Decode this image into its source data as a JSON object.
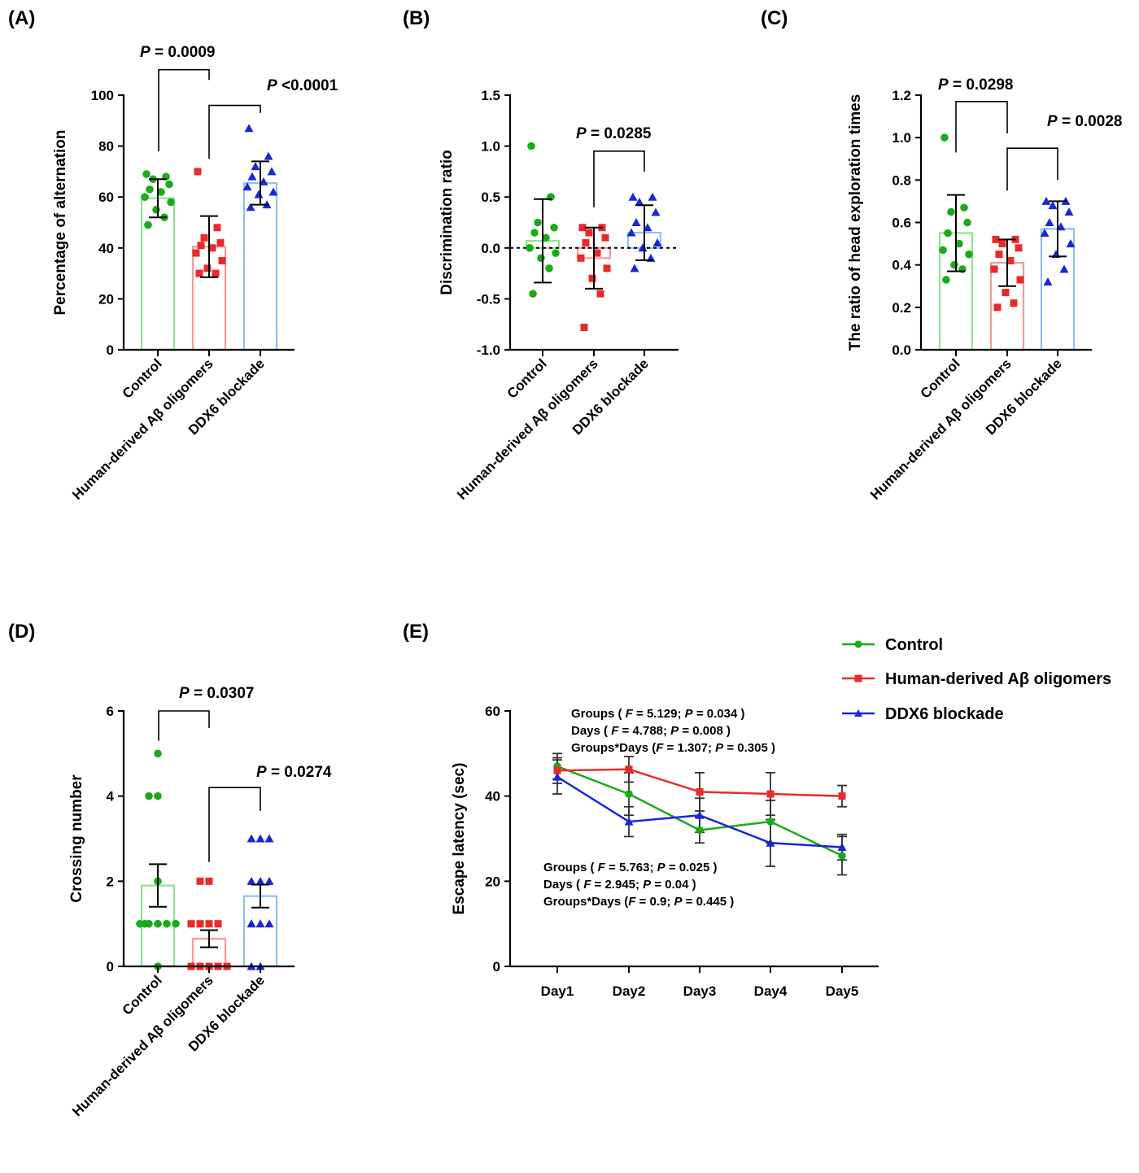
{
  "colors": {
    "control": "#1aab1a",
    "abeta": "#ea2a2a",
    "ddx6": "#1a26d6",
    "control_bar": "#8fe48f",
    "abeta_bar": "#f59a9a",
    "ddx6_bar": "#8ec0f0"
  },
  "legend": {
    "control": "Control",
    "abeta": "Human-derived Aβ oligomers",
    "ddx6": "DDX6 blockade"
  },
  "chart_data": [
    {
      "panel": "(A)",
      "type": "bar",
      "ylabel": "Percentage of alternation",
      "ylim": [
        0,
        100
      ],
      "yticks": [
        0,
        20,
        40,
        60,
        80,
        100
      ],
      "categories": [
        "Control",
        "Human-derived Aβ oligomers",
        "DDX6 blockade"
      ],
      "means": [
        59.5,
        40.5,
        65.5
      ],
      "sd": [
        7.5,
        12,
        8.5
      ],
      "points": [
        [
          69,
          68,
          67,
          65,
          63,
          62,
          60,
          58,
          55,
          52,
          49
        ],
        [
          70,
          48,
          44,
          42,
          41,
          40,
          38,
          35,
          32,
          30,
          30
        ],
        [
          87,
          76,
          72,
          70,
          68,
          66,
          64,
          62,
          61,
          57,
          56
        ]
      ],
      "comparisons": [
        {
          "pair": [
            0,
            1
          ],
          "y": 110,
          "label": "P = 0.0009"
        },
        {
          "pair": [
            1,
            2
          ],
          "y": 96,
          "label": "P  <0.0001"
        }
      ]
    },
    {
      "panel": "(B)",
      "type": "bar",
      "ylabel": "Discrimination ratio",
      "ylim": [
        -1.0,
        1.5
      ],
      "yticks": [
        -1.0,
        -0.5,
        0.0,
        0.5,
        1.0,
        1.5
      ],
      "ytick_labels": [
        "-1.0",
        "-0.5",
        "0.0",
        "0.5",
        "1.0",
        "1.5"
      ],
      "zero_line": true,
      "categories": [
        "Control",
        "Human-derived Aβ oligomers",
        "DDX6 blockade"
      ],
      "means": [
        0.07,
        -0.1,
        0.15
      ],
      "sd": [
        0.41,
        0.3,
        0.27
      ],
      "points": [
        [
          1.0,
          0.5,
          0.25,
          0.2,
          0.15,
          0.1,
          0.0,
          -0.05,
          -0.1,
          -0.2,
          -0.45
        ],
        [
          0.2,
          0.2,
          0.15,
          0.1,
          0.05,
          -0.05,
          -0.1,
          -0.2,
          -0.3,
          -0.45,
          -0.78
        ],
        [
          0.5,
          0.5,
          0.45,
          0.35,
          0.25,
          0.2,
          0.15,
          0.05,
          0.0,
          -0.1,
          -0.2
        ]
      ],
      "comparisons": [
        {
          "pair": [
            1,
            2
          ],
          "y": 0.95,
          "label": "P = 0.0285"
        }
      ]
    },
    {
      "panel": "(C)",
      "type": "bar",
      "ylabel": "The ratio of head exploration times",
      "ylim": [
        0,
        1.2
      ],
      "yticks": [
        0,
        0.2,
        0.4,
        0.6,
        0.8,
        1.0,
        1.2
      ],
      "ytick_labels": [
        "0.0",
        "0.2",
        "0.4",
        "0.6",
        "0.8",
        "1.0",
        "1.2"
      ],
      "categories": [
        "Control",
        "Human-derived Aβ oligomers",
        "DDX6 blockade"
      ],
      "means": [
        0.55,
        0.41,
        0.57
      ],
      "sd": [
        0.18,
        0.11,
        0.13
      ],
      "points": [
        [
          1.0,
          0.67,
          0.65,
          0.6,
          0.55,
          0.5,
          0.47,
          0.45,
          0.4,
          0.38,
          0.33
        ],
        [
          0.52,
          0.52,
          0.5,
          0.48,
          0.45,
          0.42,
          0.38,
          0.33,
          0.27,
          0.22,
          0.2
        ],
        [
          0.7,
          0.7,
          0.68,
          0.65,
          0.6,
          0.58,
          0.55,
          0.5,
          0.45,
          0.38,
          0.32
        ]
      ],
      "comparisons": [
        {
          "pair": [
            0,
            1
          ],
          "y": 1.17,
          "label": "P = 0.0298"
        },
        {
          "pair": [
            1,
            2
          ],
          "y": 0.95,
          "label": "P = 0.0028"
        }
      ]
    },
    {
      "panel": "(D)",
      "type": "bar",
      "ylabel": "Crossing number",
      "ylim": [
        0,
        6
      ],
      "yticks": [
        0,
        2,
        4,
        6
      ],
      "categories": [
        "Control",
        "Human-derived Aβ oligomers",
        "DDX6 blockade"
      ],
      "means": [
        1.9,
        0.65,
        1.65
      ],
      "sem": [
        0.5,
        0.2,
        0.27
      ],
      "points": [
        [
          5,
          4,
          4,
          2,
          1,
          1,
          1,
          1,
          1,
          1,
          0
        ],
        [
          2,
          2,
          1,
          1,
          1,
          1,
          0,
          0,
          0,
          0,
          0
        ],
        [
          3,
          3,
          3,
          2,
          2,
          2,
          1,
          1,
          1,
          0,
          0
        ]
      ],
      "comparisons": [
        {
          "pair": [
            0,
            1
          ],
          "y": 5.6,
          "label": "P = 0.0307"
        },
        {
          "pair": [
            1,
            2
          ],
          "y": 4.2,
          "label": "P = 0.0274"
        }
      ]
    },
    {
      "panel": "(E)",
      "type": "line",
      "ylabel": "Escape latency (sec)",
      "ylim": [
        0,
        60
      ],
      "yticks": [
        0,
        20,
        40,
        60
      ],
      "x": [
        "Day1",
        "Day2",
        "Day3",
        "Day4",
        "Day5"
      ],
      "series": [
        {
          "name": "Control",
          "values": [
            47,
            40.5,
            32,
            34,
            26
          ],
          "err": [
            3,
            5,
            3,
            5,
            4.5
          ]
        },
        {
          "name": "Human-derived Aβ oligomers",
          "values": [
            46,
            46.3,
            41,
            40.5,
            40
          ],
          "err": [
            3,
            3,
            4.5,
            5,
            2.5
          ]
        },
        {
          "name": "DDX6 blockade",
          "values": [
            44.5,
            34,
            35.5,
            29,
            28
          ],
          "err": [
            4,
            3.5,
            4,
            5.5,
            3
          ]
        }
      ],
      "stats_top": [
        [
          "Groups ( ",
          "F",
          " = 5.129; ",
          "P",
          " = 0.034 )"
        ],
        [
          "Days ( ",
          "F",
          " = 4.788; ",
          "P",
          " = 0.008 )"
        ],
        [
          "Groups*Days (",
          "F",
          " = 1.307; ",
          "P",
          " = 0.305 )"
        ]
      ],
      "stats_bottom": [
        [
          "Groups ( ",
          "F",
          " = 5.763; ",
          "P",
          " = 0.025 )"
        ],
        [
          "Days ( ",
          "F",
          " = 2.945; ",
          "P",
          " = 0.04 )"
        ],
        [
          "Groups*Days (",
          "F",
          " = 0.9; ",
          "P",
          " = 0.445 )"
        ]
      ]
    }
  ]
}
